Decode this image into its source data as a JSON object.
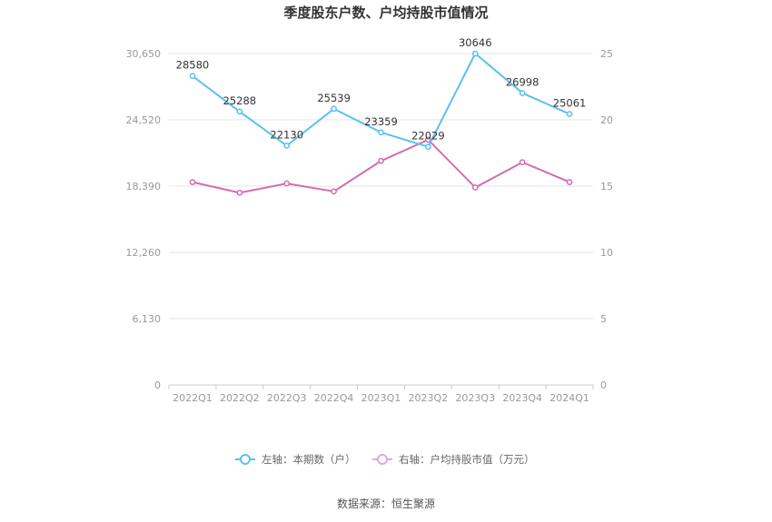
{
  "chart_data": {
    "type": "line",
    "title": "季度股东户数、户均持股市值情况",
    "categories": [
      "2022Q1",
      "2022Q2",
      "2022Q3",
      "2022Q4",
      "2023Q1",
      "2023Q2",
      "2023Q3",
      "2023Q4",
      "2024Q1"
    ],
    "series": [
      {
        "name": "左轴：本期数（户）",
        "axis": "left",
        "color": "#5bc0f0",
        "values": [
          28580,
          25288,
          22130,
          25539,
          23359,
          22029,
          30646,
          26998,
          25061
        ],
        "labels": [
          "28580",
          "25288",
          "22130",
          "25539",
          "23359",
          "22029",
          "30646",
          "26998",
          "25061"
        ]
      },
      {
        "name": "右轴：户均持股市值（万元）",
        "axis": "right",
        "color": "#d56bb0",
        "values": [
          15.3,
          14.5,
          15.2,
          14.6,
          16.9,
          18.5,
          14.9,
          16.8,
          15.3
        ]
      }
    ],
    "left_axis": {
      "ylim": [
        0,
        30650
      ],
      "ticks": [
        "0",
        "6,130",
        "12,260",
        "18,390",
        "24,520",
        "30,650"
      ]
    },
    "right_axis": {
      "ylim": [
        0,
        25
      ],
      "ticks": [
        "0",
        "5",
        "10",
        "15",
        "20",
        "25"
      ]
    },
    "grid": true,
    "legend_position": "bottom"
  },
  "source": "数据来源：恒生聚源"
}
